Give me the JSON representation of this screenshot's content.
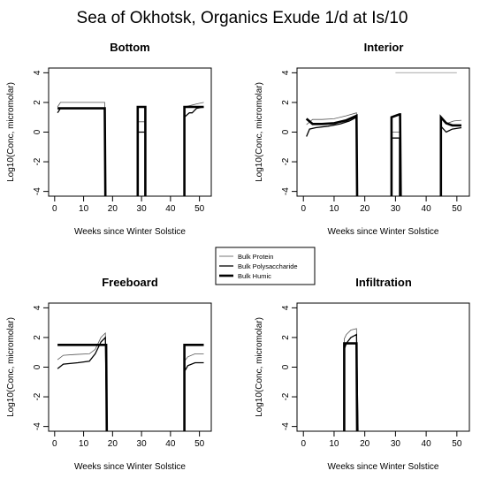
{
  "figure": {
    "title": "Sea of Okhotsk, Organics Exude 1/d at Is/10"
  },
  "legend": {
    "entries": [
      {
        "name": "Bulk Protein",
        "width": 0.8,
        "color": "#555555"
      },
      {
        "name": "Bulk Polysaccharide",
        "width": 1.3,
        "color": "#000000"
      },
      {
        "name": "Bulk Humic",
        "width": 2.6,
        "color": "#000000"
      }
    ]
  },
  "chart_data": [
    {
      "type": "line",
      "title": "Bottom",
      "xlabel": "Weeks since Winter Solstice",
      "ylabel": "Log10(Conc, micromolar)",
      "xlim": [
        0,
        52
      ],
      "ylim": [
        -4,
        4
      ],
      "xticks": [
        0,
        10,
        20,
        30,
        40,
        50
      ],
      "yticks": [
        -4,
        -2,
        0,
        2,
        4
      ],
      "series": [
        {
          "name": "Bulk Protein",
          "segments": [
            [
              [
                1,
                1.7
              ],
              [
                2,
                2.0
              ],
              [
                17.3,
                2.0
              ],
              [
                17.5,
                -4.3
              ]
            ],
            [
              [
                28.7,
                -4.3
              ],
              [
                28.7,
                0.7
              ],
              [
                31.3,
                0.7
              ],
              [
                31.3,
                -4.3
              ]
            ],
            [
              [
                44.8,
                -4.3
              ],
              [
                44.8,
                1.7
              ],
              [
                47,
                1.8
              ],
              [
                49,
                1.9
              ],
              [
                51.5,
                2.0
              ]
            ]
          ]
        },
        {
          "name": "Bulk Polysaccharide",
          "segments": [
            [
              [
                1,
                1.3
              ],
              [
                2,
                1.6
              ],
              [
                17.3,
                1.6
              ],
              [
                17.5,
                -4.3
              ]
            ],
            [
              [
                28.7,
                -4.3
              ],
              [
                28.7,
                0.0
              ],
              [
                31.3,
                0.0
              ],
              [
                31.3,
                -4.3
              ]
            ],
            [
              [
                44.8,
                -4.3
              ],
              [
                44.8,
                1.0
              ],
              [
                46.5,
                1.3
              ],
              [
                47.5,
                1.3
              ],
              [
                49,
                1.6
              ],
              [
                51.5,
                1.7
              ]
            ]
          ]
        },
        {
          "name": "Bulk Humic",
          "segments": [
            [
              [
                1,
                1.6
              ],
              [
                17.3,
                1.6
              ],
              [
                17.5,
                -4.3
              ]
            ],
            [
              [
                28.7,
                -4.3
              ],
              [
                28.7,
                1.7
              ],
              [
                31.3,
                1.7
              ],
              [
                31.3,
                -4.3
              ]
            ],
            [
              [
                44.8,
                -4.3
              ],
              [
                44.8,
                1.7
              ],
              [
                51.5,
                1.7
              ]
            ]
          ]
        }
      ]
    },
    {
      "type": "line",
      "title": "Interior",
      "xlabel": "Weeks since Winter Solstice",
      "ylabel": "Log10(Conc, micromolar)",
      "xlim": [
        0,
        52
      ],
      "ylim": [
        -4,
        4
      ],
      "xticks": [
        0,
        10,
        20,
        30,
        40,
        50
      ],
      "yticks": [
        -4,
        -2,
        0,
        2,
        4
      ],
      "series": [
        {
          "name": "Bulk Protein",
          "segments": [
            [
              [
                1,
                0.5
              ],
              [
                3,
                0.85
              ],
              [
                6,
                0.85
              ],
              [
                10,
                0.9
              ],
              [
                14,
                1.1
              ],
              [
                17.3,
                1.3
              ],
              [
                17.5,
                -4.3
              ]
            ],
            [
              [
                28.7,
                -4.3
              ],
              [
                28.7,
                0.0
              ],
              [
                31.3,
                0.0
              ],
              [
                31.3,
                -4.3
              ]
            ],
            [
              [
                44.8,
                -4.3
              ],
              [
                44.8,
                0.9
              ],
              [
                47,
                0.6
              ],
              [
                49,
                0.75
              ],
              [
                51.5,
                0.8
              ]
            ]
          ]
        },
        {
          "name": "Bulk Polysaccharide",
          "segments": [
            [
              [
                1,
                -0.3
              ],
              [
                2,
                0.2
              ],
              [
                4,
                0.3
              ],
              [
                8,
                0.4
              ],
              [
                12,
                0.55
              ],
              [
                15,
                0.75
              ],
              [
                17.3,
                1.0
              ],
              [
                17.5,
                -4.3
              ]
            ],
            [
              [
                28.7,
                -4.3
              ],
              [
                28.7,
                -0.4
              ],
              [
                31.3,
                -0.4
              ],
              [
                31.3,
                -4.3
              ]
            ],
            [
              [
                44.8,
                -4.3
              ],
              [
                44.8,
                0.4
              ],
              [
                46.5,
                0.0
              ],
              [
                48.5,
                0.2
              ],
              [
                51.5,
                0.3
              ]
            ]
          ]
        },
        {
          "name": "Bulk Humic",
          "segments": [
            [
              [
                1,
                0.9
              ],
              [
                3,
                0.55
              ],
              [
                6,
                0.55
              ],
              [
                10,
                0.6
              ],
              [
                14,
                0.8
              ],
              [
                17.3,
                1.1
              ],
              [
                17.5,
                -4.3
              ]
            ],
            [
              [
                28.7,
                -4.3
              ],
              [
                28.7,
                1.0
              ],
              [
                31.3,
                1.2
              ],
              [
                31.5,
                1.2
              ],
              [
                31.7,
                -4.3
              ]
            ],
            [
              [
                44.8,
                -4.3
              ],
              [
                44.8,
                1.0
              ],
              [
                46.5,
                0.6
              ],
              [
                48.5,
                0.45
              ],
              [
                51.5,
                0.45
              ]
            ]
          ]
        },
        {
          "name": "",
          "segments": [
            [
              [
                30,
                4.0
              ],
              [
                50,
                4.0
              ]
            ]
          ]
        }
      ]
    },
    {
      "type": "line",
      "title": "Freeboard",
      "xlabel": "Weeks since Winter Solstice",
      "ylabel": "Log10(Conc, micromolar)",
      "xlim": [
        0,
        52
      ],
      "ylim": [
        -4,
        4
      ],
      "xticks": [
        0,
        10,
        20,
        30,
        40,
        50
      ],
      "yticks": [
        -4,
        -2,
        0,
        2,
        4
      ],
      "series": [
        {
          "name": "Bulk Protein",
          "segments": [
            [
              [
                1,
                0.5
              ],
              [
                3,
                0.8
              ],
              [
                7,
                0.85
              ],
              [
                12,
                0.9
              ],
              [
                14,
                1.2
              ],
              [
                16,
                2.0
              ],
              [
                17.5,
                2.3
              ],
              [
                18,
                -4.3
              ]
            ],
            [
              [
                44.8,
                -4.3
              ],
              [
                44.8,
                0.4
              ],
              [
                46,
                0.7
              ],
              [
                48.5,
                0.9
              ],
              [
                51.5,
                0.9
              ]
            ]
          ]
        },
        {
          "name": "Bulk Polysaccharide",
          "segments": [
            [
              [
                1,
                -0.1
              ],
              [
                3,
                0.2
              ],
              [
                8,
                0.3
              ],
              [
                12,
                0.4
              ],
              [
                14,
                0.9
              ],
              [
                16,
                1.7
              ],
              [
                17.5,
                2.0
              ],
              [
                18,
                -4.3
              ]
            ],
            [
              [
                44.8,
                -4.3
              ],
              [
                44.8,
                -0.3
              ],
              [
                46,
                0.1
              ],
              [
                48.5,
                0.3
              ],
              [
                51.5,
                0.3
              ]
            ]
          ]
        },
        {
          "name": "Bulk Humic",
          "segments": [
            [
              [
                1,
                1.5
              ],
              [
                17.8,
                1.5
              ],
              [
                18,
                -4.3
              ]
            ],
            [
              [
                44.8,
                -4.3
              ],
              [
                44.8,
                1.5
              ],
              [
                51.5,
                1.5
              ]
            ]
          ]
        }
      ]
    },
    {
      "type": "line",
      "title": "Infiltration",
      "xlabel": "Weeks since Winter Solstice",
      "ylabel": "Log10(Conc, micromolar)",
      "xlim": [
        0,
        52
      ],
      "ylim": [
        -4,
        4
      ],
      "xticks": [
        0,
        10,
        20,
        30,
        40,
        50
      ],
      "yticks": [
        -4,
        -2,
        0,
        2,
        4
      ],
      "series": [
        {
          "name": "Bulk Protein",
          "segments": [
            [
              [
                13.3,
                -4.3
              ],
              [
                13.3,
                1.9
              ],
              [
                14,
                2.2
              ],
              [
                15.5,
                2.5
              ],
              [
                17.3,
                2.6
              ],
              [
                17.8,
                -4.3
              ]
            ]
          ]
        },
        {
          "name": "Bulk Polysaccharide",
          "segments": [
            [
              [
                13.3,
                -4.3
              ],
              [
                13.3,
                1.2
              ],
              [
                14,
                1.6
              ],
              [
                15.5,
                2.0
              ],
              [
                17.3,
                2.2
              ],
              [
                17.8,
                -4.3
              ]
            ]
          ]
        },
        {
          "name": "Bulk Humic",
          "segments": [
            [
              [
                13.3,
                -4.3
              ],
              [
                13.3,
                1.6
              ],
              [
                17.3,
                1.6
              ],
              [
                17.5,
                -4.3
              ]
            ]
          ]
        }
      ]
    }
  ]
}
